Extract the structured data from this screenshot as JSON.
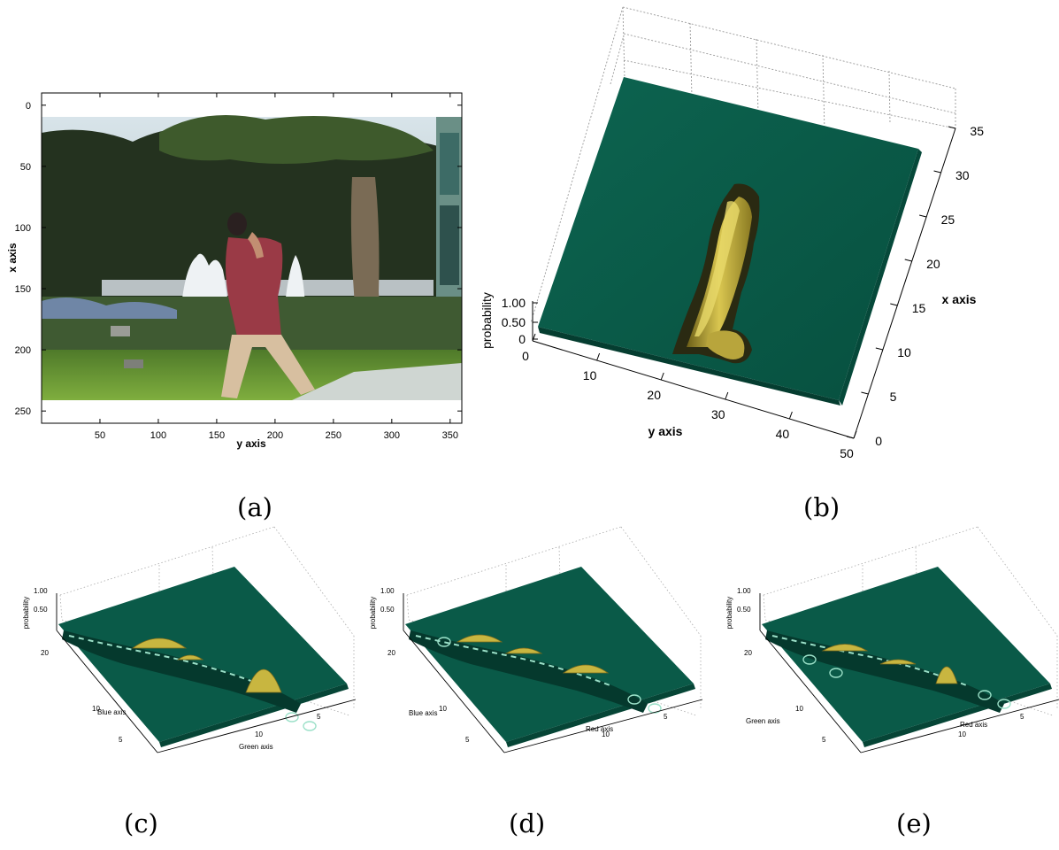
{
  "panels": {
    "a": {
      "caption": "(a)"
    },
    "b": {
      "caption": "(b)"
    },
    "c": {
      "caption": "(c)"
    },
    "d": {
      "caption": "(d)"
    },
    "e": {
      "caption": "(e)"
    }
  },
  "colors": {
    "surface": "#0a5a48",
    "surface_dark": "#064536",
    "peak": "#c8b640",
    "peak_dark": "#7a6a1c",
    "highlight": "#9be0c8"
  },
  "chart_data": [
    {
      "id": "a",
      "type": "image",
      "xlabel": "y axis",
      "ylabel": "x axis",
      "xticks": [
        50,
        100,
        150,
        200,
        250,
        300,
        350
      ],
      "yticks": [
        0,
        50,
        100,
        150,
        200,
        250
      ],
      "xlim": [
        0,
        360
      ],
      "ylim": [
        260,
        -10
      ],
      "content": "video frame of a person walking past a tree and fountains"
    },
    {
      "id": "b",
      "type": "surface3d",
      "xlabel": "y axis",
      "ylabel": "x axis",
      "zlabel": "probability",
      "xticks": [
        0,
        10,
        20,
        30,
        40,
        50
      ],
      "yticks": [
        0,
        5,
        10,
        15,
        20,
        25,
        30,
        35
      ],
      "zticks": [
        "0",
        "0.50",
        "1.00"
      ],
      "xlim": [
        0,
        50
      ],
      "ylim": [
        0,
        35
      ],
      "zlim": [
        0,
        1.0
      ]
    },
    {
      "id": "c",
      "type": "surface3d",
      "xlabel": "Green axis",
      "ylabel": "Blue axis",
      "zlabel": "probability",
      "zticks": [
        "1.00",
        "0.50"
      ],
      "yticks": [
        20,
        10,
        5
      ],
      "xticks": [
        10,
        5
      ]
    },
    {
      "id": "d",
      "type": "surface3d",
      "xlabel": "Red axis",
      "ylabel": "Blue axis",
      "zlabel": "probability",
      "zticks": [
        "1.00",
        "0.50"
      ],
      "yticks": [
        20,
        10,
        5
      ],
      "xticks": [
        10,
        5
      ]
    },
    {
      "id": "e",
      "type": "surface3d",
      "xlabel": "Red axis",
      "ylabel": "Green axis",
      "zlabel": "probability",
      "zticks": [
        "1.00",
        "0.50"
      ],
      "yticks": [
        20,
        10,
        5
      ],
      "xticks": [
        10,
        5
      ]
    }
  ]
}
